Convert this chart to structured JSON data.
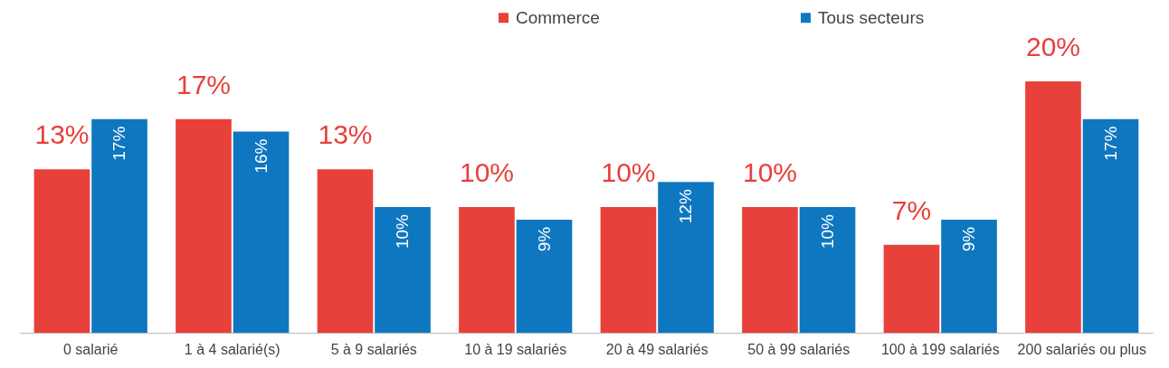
{
  "chart_data": {
    "type": "bar",
    "categories": [
      "0 salarié",
      "1 à 4 salarié(s)",
      "5 à 9 salariés",
      "10 à 19 salariés",
      "20 à 49 salariés",
      "50 à 99 salariés",
      "100 à 199 salariés",
      "200 salariés ou plus"
    ],
    "series": [
      {
        "name": "Commerce",
        "color": "#e8403a",
        "values": [
          13,
          17,
          13,
          10,
          10,
          10,
          7,
          20
        ],
        "value_labels": [
          "13%",
          "17%",
          "13%",
          "10%",
          "10%",
          "10%",
          "7%",
          "20%"
        ]
      },
      {
        "name": "Tous secteurs",
        "color": "#0f77c0",
        "values": [
          17,
          16,
          10,
          9,
          12,
          10,
          9,
          17
        ],
        "value_labels": [
          "17%",
          "16%",
          "10%",
          "9%",
          "12%",
          "10%",
          "9%",
          "17%"
        ]
      }
    ],
    "legend": "top"
  }
}
